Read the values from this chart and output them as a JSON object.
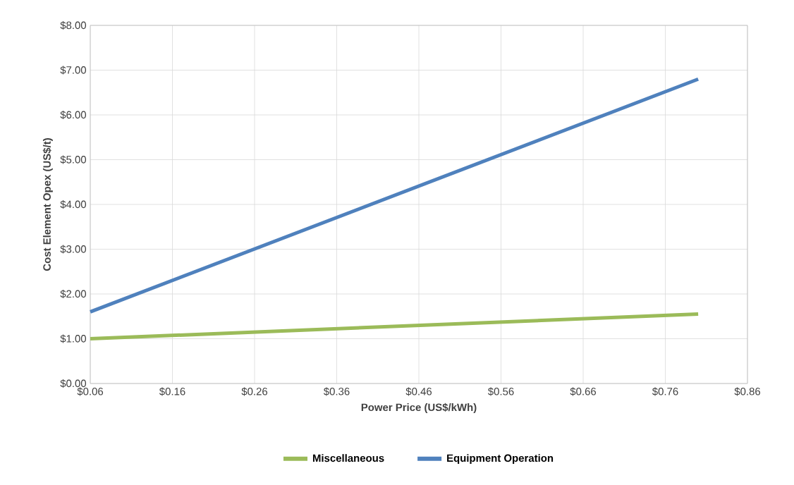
{
  "chart_data": {
    "type": "line",
    "xlabel": "Power Price (US$/kWh)",
    "ylabel": "Cost Element Opex (US$/t)",
    "xlim": [
      0.06,
      0.86
    ],
    "xticks": [
      {
        "value": 0.06,
        "label": "$0.06"
      },
      {
        "value": 0.16,
        "label": "$0.16"
      },
      {
        "value": 0.26,
        "label": "$0.26"
      },
      {
        "value": 0.36,
        "label": "$0.36"
      },
      {
        "value": 0.46,
        "label": "$0.46"
      },
      {
        "value": 0.56,
        "label": "$0.56"
      },
      {
        "value": 0.66,
        "label": "$0.66"
      },
      {
        "value": 0.76,
        "label": "$0.76"
      },
      {
        "value": 0.86,
        "label": "$0.86"
      }
    ],
    "ylim": [
      0,
      8
    ],
    "yticks": [
      {
        "value": 0,
        "label": "$0.00"
      },
      {
        "value": 1,
        "label": "$1.00"
      },
      {
        "value": 2,
        "label": "$2.00"
      },
      {
        "value": 3,
        "label": "$3.00"
      },
      {
        "value": 4,
        "label": "$4.00"
      },
      {
        "value": 5,
        "label": "$5.00"
      },
      {
        "value": 6,
        "label": "$6.00"
      },
      {
        "value": 7,
        "label": "$7.00"
      },
      {
        "value": 8,
        "label": "$8.00"
      }
    ],
    "x": [
      0.06,
      0.8
    ],
    "grid": true,
    "legend": "bottom",
    "marker": "none",
    "line_style": "solid",
    "series": [
      {
        "name": "Miscellaneous",
        "color": "#9bbb59",
        "values": [
          1.0,
          1.55
        ]
      },
      {
        "name": "Equipment Operation",
        "color": "#4f81bd",
        "values": [
          1.6,
          6.8
        ]
      }
    ]
  }
}
